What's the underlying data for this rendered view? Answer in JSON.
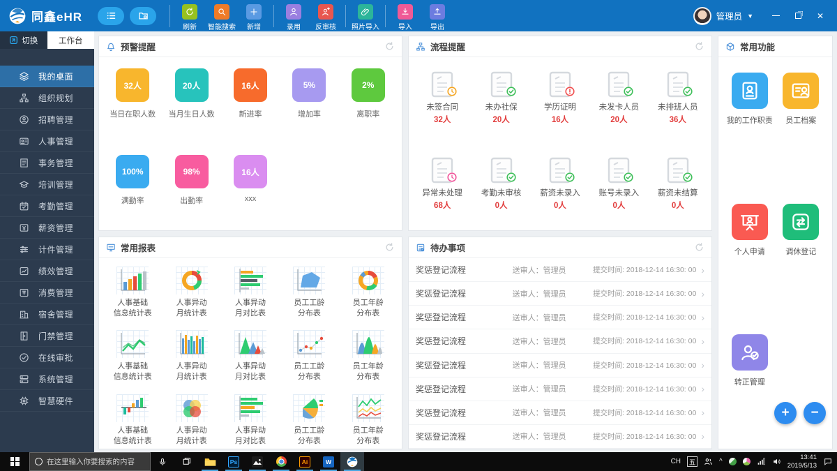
{
  "app": {
    "title": "同鑫eHR",
    "user": {
      "name": "管理员"
    }
  },
  "toolbar": {
    "buttons": [
      {
        "label": "刷新",
        "icon": "refresh-icon",
        "color": "#97c11f",
        "sep_before": true
      },
      {
        "label": "智能搜索",
        "icon": "search-icon",
        "color": "#f07b27",
        "sep_before": false
      },
      {
        "label": "新增",
        "icon": "plus-icon",
        "color": "#5a9ae2",
        "sep_before": false
      },
      {
        "label": "录用",
        "icon": "person-icon",
        "color": "#9a7fe0",
        "sep_before": true
      },
      {
        "label": "反审核",
        "icon": "person-undo-icon",
        "color": "#e8564f",
        "sep_before": false
      },
      {
        "label": "照片导入",
        "icon": "paperclip-icon",
        "color": "#2cb59a",
        "sep_before": true
      },
      {
        "label": "导入",
        "icon": "import-icon",
        "color": "#f05a96",
        "sep_before": true
      },
      {
        "label": "导出",
        "icon": "export-icon",
        "color": "#6c7ce0",
        "sep_before": false
      }
    ]
  },
  "sidebar": {
    "tabs": {
      "switch": "切换",
      "workbench": "工作台"
    },
    "items": [
      {
        "label": "我的桌面",
        "icon": "layers-icon",
        "active": true
      },
      {
        "label": "组织规划",
        "icon": "org-icon",
        "active": false
      },
      {
        "label": "招聘管理",
        "icon": "recruit-icon",
        "active": false
      },
      {
        "label": "人事管理",
        "icon": "idcard-icon",
        "active": false
      },
      {
        "label": "事务管理",
        "icon": "tasks-icon",
        "active": false
      },
      {
        "label": "培训管理",
        "icon": "training-icon",
        "active": false
      },
      {
        "label": "考勤管理",
        "icon": "attendance-icon",
        "active": false
      },
      {
        "label": "薪资管理",
        "icon": "salary-icon",
        "active": false
      },
      {
        "label": "计件管理",
        "icon": "piecework-icon",
        "active": false
      },
      {
        "label": "绩效管理",
        "icon": "performance-icon",
        "active": false
      },
      {
        "label": "消费管理",
        "icon": "consumption-icon",
        "active": false
      },
      {
        "label": "宿舍管理",
        "icon": "dormitory-icon",
        "active": false
      },
      {
        "label": "门禁管理",
        "icon": "access-icon",
        "active": false
      },
      {
        "label": "在线审批",
        "icon": "approval-icon",
        "active": false
      },
      {
        "label": "系统管理",
        "icon": "system-icon",
        "active": false
      },
      {
        "label": "智慧硬件",
        "icon": "hardware-icon",
        "active": false
      }
    ]
  },
  "panels": {
    "warning": {
      "title": "预警提醒",
      "stats": [
        {
          "value": "32人",
          "label": "当日在职人数",
          "color": "#f8b62d"
        },
        {
          "value": "20人",
          "label": "当月生日人数",
          "color": "#27c3bc"
        },
        {
          "value": "16人",
          "label": "新进率",
          "color": "#f76b2c"
        },
        {
          "value": "5%",
          "label": "增加率",
          "color": "#a79af0"
        },
        {
          "value": "2%",
          "label": "离职率",
          "color": "#5ec93e"
        },
        {
          "value": "100%",
          "label": "满勤率",
          "color": "#3aabf0"
        },
        {
          "value": "98%",
          "label": "出勤率",
          "color": "#f85c9f"
        },
        {
          "value": "16人",
          "label": "xxx",
          "color": "#da8df0"
        }
      ]
    },
    "process": {
      "title": "流程提醒",
      "items": [
        {
          "label": "未签合同",
          "count": "32人",
          "badge": "clock-orange-icon"
        },
        {
          "label": "未办社保",
          "count": "20人",
          "badge": "check-green-icon"
        },
        {
          "label": "学历证明",
          "count": "16人",
          "badge": "alert-red-icon"
        },
        {
          "label": "未发卡人员",
          "count": "20人",
          "badge": "check-green-icon"
        },
        {
          "label": "未排班人员",
          "count": "36人",
          "badge": "check-green-icon"
        },
        {
          "label": "异常未处理",
          "count": "68人",
          "badge": "clock-pink-icon"
        },
        {
          "label": "考勤未审核",
          "count": "0人",
          "badge": "check-green-icon"
        },
        {
          "label": "薪资未录入",
          "count": "0人",
          "badge": "check-green-icon"
        },
        {
          "label": "账号未录入",
          "count": "0人",
          "badge": "check-green-icon"
        },
        {
          "label": "薪资未结算",
          "count": "0人",
          "badge": "check-green-icon"
        }
      ]
    },
    "reports": {
      "title": "常用报表",
      "items": [
        {
          "line1": "人事基础",
          "line2": "信息统计表",
          "icon": "bar-chart-icon"
        },
        {
          "line1": "人事异动",
          "line2": "月统计表",
          "icon": "donut-chart-icon"
        },
        {
          "line1": "人事异动",
          "line2": "月对比表",
          "icon": "hbar-chart-icon"
        },
        {
          "line1": "员工工龄",
          "line2": "分布表",
          "icon": "polygon-chart-icon"
        },
        {
          "line1": "员工年龄",
          "line2": "分布表",
          "icon": "ring-chart-icon"
        },
        {
          "line1": "人事基础",
          "line2": "信息统计表",
          "icon": "line-chart-icon"
        },
        {
          "line1": "人事异动",
          "line2": "月统计表",
          "icon": "histogram-chart-icon"
        },
        {
          "line1": "人事异动",
          "line2": "月对比表",
          "icon": "mountain-chart-icon"
        },
        {
          "line1": "员工工龄",
          "line2": "分布表",
          "icon": "scatter-chart-icon"
        },
        {
          "line1": "员工年龄",
          "line2": "分布表",
          "icon": "area-chart-icon"
        },
        {
          "line1": "人事基础",
          "line2": "信息统计表",
          "icon": "posneg-chart-icon"
        },
        {
          "line1": "人事异动",
          "line2": "月统计表",
          "icon": "bubble-chart-icon"
        },
        {
          "line1": "人事异动",
          "line2": "月对比表",
          "icon": "hbar2-chart-icon"
        },
        {
          "line1": "员工工龄",
          "line2": "分布表",
          "icon": "fan-chart-icon"
        },
        {
          "line1": "员工年龄",
          "line2": "分布表",
          "icon": "multiline-chart-icon"
        }
      ]
    },
    "todo": {
      "title": "待办事项",
      "rows": [
        {
          "title": "奖惩登记流程",
          "reviewer": "送审人：管理员",
          "time": "提交时间: 2018-12-14 16:30: 00"
        },
        {
          "title": "奖惩登记流程",
          "reviewer": "送审人：管理员",
          "time": "提交时间: 2018-12-14 16:30: 00"
        },
        {
          "title": "奖惩登记流程",
          "reviewer": "送审人：管理员",
          "time": "提交时间: 2018-12-14 16:30: 00"
        },
        {
          "title": "奖惩登记流程",
          "reviewer": "送审人：管理员",
          "time": "提交时间: 2018-12-14 16:30: 00"
        },
        {
          "title": "奖惩登记流程",
          "reviewer": "送审人：管理员",
          "time": "提交时间: 2018-12-14 16:30: 00"
        },
        {
          "title": "奖惩登记流程",
          "reviewer": "送审人：管理员",
          "time": "提交时间: 2018-12-14 16:30: 00"
        },
        {
          "title": "奖惩登记流程",
          "reviewer": "送审人：管理员",
          "time": "提交时间: 2018-12-14 16:30: 00"
        },
        {
          "title": "奖惩登记流程",
          "reviewer": "送审人：管理员",
          "time": "提交时间: 2018-12-14 16:30: 00"
        }
      ]
    },
    "common": {
      "title": "常用功能",
      "items": [
        {
          "label": "我的工作职责",
          "icon": "id-badge-icon",
          "color": "#3aabf0"
        },
        {
          "label": "员工档案",
          "icon": "employee-file-icon",
          "color": "#f8b62d"
        },
        {
          "label": "个人申请",
          "icon": "personal-apply-icon",
          "color": "#fa5a52"
        },
        {
          "label": "调休登记",
          "icon": "swap-icon",
          "color": "#1fbd7a"
        },
        {
          "label": "转正管理",
          "icon": "person-check-icon",
          "color": "#8f86e8"
        }
      ]
    }
  },
  "fab": {
    "zoom_in": "+",
    "zoom_out": "−"
  },
  "taskbar": {
    "search_placeholder": "在这里输入你要搜索的内容",
    "tray": {
      "lang": "CH",
      "ime": "五",
      "caret": "^",
      "time": "13:41",
      "date": "2019/5/13"
    }
  }
}
